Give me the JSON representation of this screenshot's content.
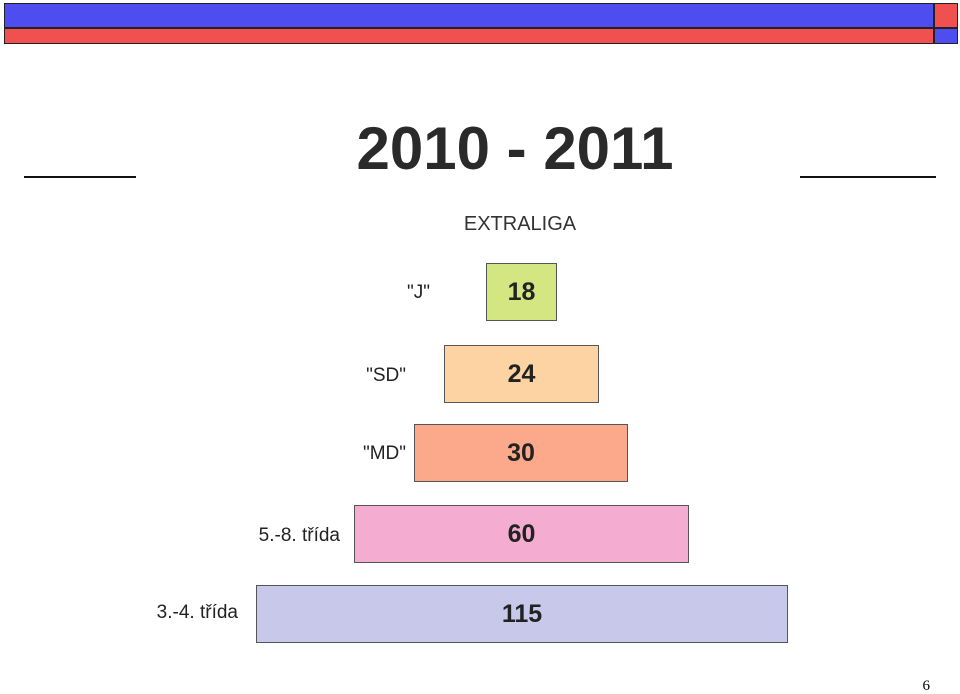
{
  "title": "2010 - 2011",
  "subtitle": "EXTRALIGA",
  "tiers": [
    {
      "label": "\"J\"",
      "value": "18",
      "color": "#d4e682"
    },
    {
      "label": "\"SD\"",
      "value": "24",
      "color": "#fdd3a3"
    },
    {
      "label": "\"MD\"",
      "value": "30",
      "color": "#fca88a"
    },
    {
      "label": "5.-8. třída",
      "value": "60",
      "color": "#f4add1"
    },
    {
      "label": "3.-4. třída",
      "value": "115",
      "color": "#c8c8eb"
    }
  ],
  "page_number": "6",
  "colors": {
    "header_blue": "#4d4df0",
    "header_red": "#f05050"
  }
}
